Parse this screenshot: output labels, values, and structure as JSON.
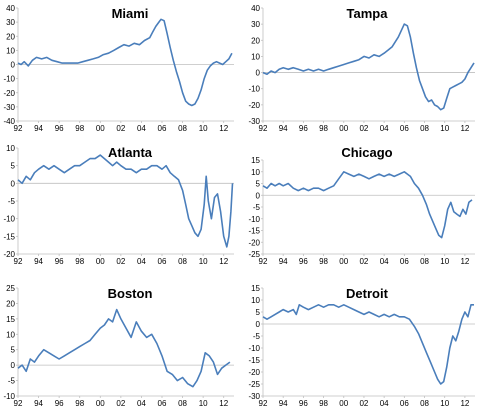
{
  "chart_data": [
    {
      "type": "line",
      "title": "Miami",
      "ylim": [
        -40,
        40
      ],
      "yticks": [
        40,
        30,
        20,
        10,
        0,
        -10,
        -20,
        -30,
        -40
      ],
      "xticks": [
        "92",
        "94",
        "96",
        "98",
        "00",
        "02",
        "04",
        "06",
        "08",
        "10",
        "12"
      ],
      "xlim": [
        1992,
        2013
      ],
      "series": [
        {
          "x": [
            1992.0,
            1992.3,
            1992.6,
            1993.0,
            1993.4,
            1993.8,
            1994.3,
            1994.8,
            1995.3,
            1995.8,
            1996.3,
            1996.8,
            1997.3,
            1997.8,
            1998.3,
            1998.8,
            1999.3,
            1999.8,
            2000.3,
            2000.8,
            2001.3,
            2001.8,
            2002.3,
            2002.8,
            2003.3,
            2003.8,
            2004.3,
            2004.8,
            2005.1,
            2005.4,
            2005.7,
            2005.9,
            2006.2,
            2006.5,
            2006.8,
            2007.1,
            2007.4,
            2007.7,
            2008.0,
            2008.3,
            2008.6,
            2008.9,
            2009.2,
            2009.5,
            2009.8,
            2010.1,
            2010.4,
            2010.7,
            2011.0,
            2011.3,
            2011.6,
            2011.9,
            2012.2,
            2012.5,
            2012.8
          ],
          "values": [
            1,
            0,
            2,
            -1,
            3,
            5,
            4,
            5,
            3,
            2,
            1,
            1,
            1,
            1,
            2,
            3,
            4,
            5,
            7,
            8,
            10,
            12,
            14,
            13,
            15,
            14,
            17,
            19,
            23,
            27,
            30,
            32,
            31,
            22,
            12,
            3,
            -5,
            -12,
            -20,
            -26,
            -28,
            -29,
            -28,
            -24,
            -18,
            -10,
            -4,
            -1,
            1,
            2,
            1,
            0,
            2,
            4,
            8
          ]
        }
      ]
    },
    {
      "type": "line",
      "title": "Tampa",
      "ylim": [
        -30,
        40
      ],
      "yticks": [
        40,
        30,
        20,
        10,
        0,
        -10,
        -20,
        -30
      ],
      "xticks": [
        "92",
        "94",
        "96",
        "98",
        "00",
        "02",
        "04",
        "06",
        "08",
        "10",
        "12"
      ],
      "xlim": [
        1992,
        2013
      ],
      "series": [
        {
          "x": [
            1992.0,
            1992.4,
            1992.8,
            1993.2,
            1993.6,
            1994.0,
            1994.5,
            1995.0,
            1995.5,
            1996.0,
            1996.5,
            1997.0,
            1997.5,
            1998.0,
            1998.5,
            1999.0,
            1999.5,
            2000.0,
            2000.5,
            2001.0,
            2001.5,
            2002.0,
            2002.5,
            2003.0,
            2003.5,
            2004.0,
            2004.4,
            2004.8,
            2005.1,
            2005.4,
            2005.7,
            2006.0,
            2006.3,
            2006.6,
            2006.9,
            2007.2,
            2007.5,
            2007.8,
            2008.1,
            2008.4,
            2008.7,
            2009.0,
            2009.3,
            2009.6,
            2009.9,
            2010.2,
            2010.5,
            2010.8,
            2011.1,
            2011.4,
            2011.7,
            2012.0,
            2012.3,
            2012.6,
            2012.9
          ],
          "values": [
            0,
            -1,
            1,
            0,
            2,
            3,
            2,
            3,
            2,
            1,
            2,
            1,
            2,
            1,
            2,
            3,
            4,
            5,
            6,
            7,
            8,
            10,
            9,
            11,
            10,
            12,
            14,
            16,
            19,
            22,
            26,
            30,
            29,
            22,
            12,
            3,
            -5,
            -10,
            -15,
            -18,
            -17,
            -20,
            -21,
            -23,
            -22,
            -16,
            -10,
            -9,
            -8,
            -7,
            -6,
            -4,
            0,
            3,
            6
          ]
        }
      ]
    },
    {
      "type": "line",
      "title": "Atlanta",
      "ylim": [
        -20,
        10
      ],
      "yticks": [
        10,
        5,
        0,
        -5,
        -10,
        -15,
        -20
      ],
      "xticks": [
        "92",
        "94",
        "96",
        "98",
        "00",
        "02",
        "04",
        "06",
        "08",
        "10",
        "12"
      ],
      "xlim": [
        1992,
        2013
      ],
      "series": [
        {
          "x": [
            1992.0,
            1992.4,
            1992.8,
            1993.2,
            1993.6,
            1994.0,
            1994.5,
            1995.0,
            1995.5,
            1996.0,
            1996.5,
            1997.0,
            1997.5,
            1998.0,
            1998.5,
            1999.0,
            1999.5,
            2000.0,
            2000.4,
            2000.8,
            2001.2,
            2001.6,
            2002.0,
            2002.5,
            2003.0,
            2003.5,
            2004.0,
            2004.5,
            2005.0,
            2005.5,
            2006.0,
            2006.4,
            2006.8,
            2007.2,
            2007.6,
            2008.0,
            2008.3,
            2008.6,
            2008.9,
            2009.2,
            2009.5,
            2009.8,
            2010.1,
            2010.3,
            2010.5,
            2010.8,
            2011.1,
            2011.4,
            2011.7,
            2012.0,
            2012.3,
            2012.5,
            2012.7,
            2012.85
          ],
          "values": [
            1,
            0,
            2,
            1,
            3,
            4,
            5,
            4,
            5,
            4,
            3,
            4,
            5,
            5,
            6,
            7,
            7,
            8,
            7,
            6,
            5,
            6,
            5,
            4,
            4,
            3,
            4,
            4,
            5,
            5,
            4,
            5,
            3,
            2,
            1,
            -2,
            -6,
            -10,
            -12,
            -14,
            -15,
            -13,
            -6,
            2,
            -5,
            -10,
            -4,
            -3,
            -8,
            -15,
            -18,
            -15,
            -8,
            0
          ]
        }
      ]
    },
    {
      "type": "line",
      "title": "Chicago",
      "ylim": [
        -25,
        15
      ],
      "yticks": [
        15,
        10,
        5,
        0,
        -5,
        -10,
        -15,
        -20,
        -25
      ],
      "xticks": [
        "92",
        "94",
        "96",
        "98",
        "00",
        "02",
        "04",
        "06",
        "08",
        "10",
        "12"
      ],
      "xlim": [
        1992,
        2013
      ],
      "series": [
        {
          "x": [
            1992.0,
            1992.4,
            1992.8,
            1993.2,
            1993.6,
            1994.0,
            1994.5,
            1995.0,
            1995.5,
            1996.0,
            1996.5,
            1997.0,
            1997.5,
            1998.0,
            1998.5,
            1999.0,
            1999.5,
            2000.0,
            2000.5,
            2001.0,
            2001.5,
            2002.0,
            2002.5,
            2003.0,
            2003.5,
            2004.0,
            2004.5,
            2005.0,
            2005.5,
            2006.0,
            2006.3,
            2006.6,
            2007.0,
            2007.4,
            2007.8,
            2008.2,
            2008.5,
            2008.8,
            2009.1,
            2009.4,
            2009.7,
            2010.0,
            2010.3,
            2010.6,
            2010.9,
            2011.2,
            2011.5,
            2011.8,
            2012.1,
            2012.4,
            2012.7
          ],
          "values": [
            4,
            3,
            5,
            4,
            5,
            4,
            5,
            3,
            2,
            3,
            2,
            3,
            3,
            2,
            3,
            4,
            7,
            10,
            9,
            8,
            9,
            8,
            7,
            8,
            9,
            8,
            9,
            8,
            9,
            10,
            9,
            8,
            5,
            3,
            0,
            -4,
            -8,
            -11,
            -14,
            -17,
            -18,
            -13,
            -6,
            -3,
            -7,
            -8,
            -9,
            -6,
            -8,
            -3,
            -2
          ]
        }
      ]
    },
    {
      "type": "line",
      "title": "Boston",
      "ylim": [
        -10,
        25
      ],
      "yticks": [
        25,
        20,
        15,
        10,
        5,
        0,
        -5,
        -10
      ],
      "xticks": [
        "92",
        "94",
        "96",
        "98",
        "00",
        "02",
        "04",
        "06",
        "08",
        "10",
        "12"
      ],
      "xlim": [
        1992,
        2013
      ],
      "series": [
        {
          "x": [
            1992.0,
            1992.4,
            1992.8,
            1993.2,
            1993.6,
            1994.0,
            1994.5,
            1995.0,
            1995.5,
            1996.0,
            1996.5,
            1997.0,
            1997.5,
            1998.0,
            1998.5,
            1999.0,
            1999.5,
            2000.0,
            2000.4,
            2000.8,
            2001.2,
            2001.6,
            2002.0,
            2002.5,
            2003.0,
            2003.5,
            2004.0,
            2004.5,
            2005.0,
            2005.5,
            2006.0,
            2006.5,
            2007.0,
            2007.5,
            2008.0,
            2008.5,
            2009.0,
            2009.4,
            2009.8,
            2010.2,
            2010.6,
            2011.0,
            2011.4,
            2011.8,
            2012.2,
            2012.6
          ],
          "values": [
            -1,
            0,
            -2,
            2,
            1,
            3,
            5,
            4,
            3,
            2,
            3,
            4,
            5,
            6,
            7,
            8,
            10,
            12,
            13,
            15,
            14,
            18,
            15,
            12,
            9,
            14,
            11,
            9,
            10,
            7,
            3,
            -2,
            -3,
            -5,
            -4,
            -6,
            -7,
            -5,
            -2,
            4,
            3,
            1,
            -3,
            -1,
            0,
            1
          ]
        }
      ]
    },
    {
      "type": "line",
      "title": "Detroit",
      "ylim": [
        -30,
        15
      ],
      "yticks": [
        15,
        10,
        5,
        0,
        -5,
        -10,
        -15,
        -20,
        -25,
        -30
      ],
      "xticks": [
        "92",
        "94",
        "96",
        "98",
        "00",
        "02",
        "04",
        "06",
        "08",
        "10",
        "12"
      ],
      "xlim": [
        1992,
        2013
      ],
      "series": [
        {
          "x": [
            1992.0,
            1992.4,
            1992.8,
            1993.2,
            1993.6,
            1994.0,
            1994.5,
            1995.0,
            1995.3,
            1995.6,
            1996.0,
            1996.5,
            1997.0,
            1997.5,
            1998.0,
            1998.5,
            1999.0,
            1999.5,
            2000.0,
            2000.5,
            2001.0,
            2001.5,
            2002.0,
            2002.5,
            2003.0,
            2003.5,
            2004.0,
            2004.5,
            2005.0,
            2005.5,
            2006.0,
            2006.5,
            2007.0,
            2007.4,
            2007.8,
            2008.2,
            2008.6,
            2009.0,
            2009.3,
            2009.6,
            2009.9,
            2010.2,
            2010.5,
            2010.8,
            2011.1,
            2011.4,
            2011.7,
            2012.0,
            2012.3,
            2012.6,
            2012.9
          ],
          "values": [
            3,
            2,
            3,
            4,
            5,
            6,
            5,
            6,
            4,
            8,
            7,
            6,
            7,
            8,
            7,
            8,
            8,
            7,
            8,
            7,
            6,
            5,
            4,
            5,
            4,
            3,
            4,
            3,
            4,
            3,
            3,
            2,
            -1,
            -4,
            -8,
            -12,
            -16,
            -20,
            -23,
            -25,
            -24,
            -18,
            -10,
            -5,
            -7,
            -3,
            2,
            5,
            3,
            8,
            8
          ]
        }
      ]
    }
  ]
}
